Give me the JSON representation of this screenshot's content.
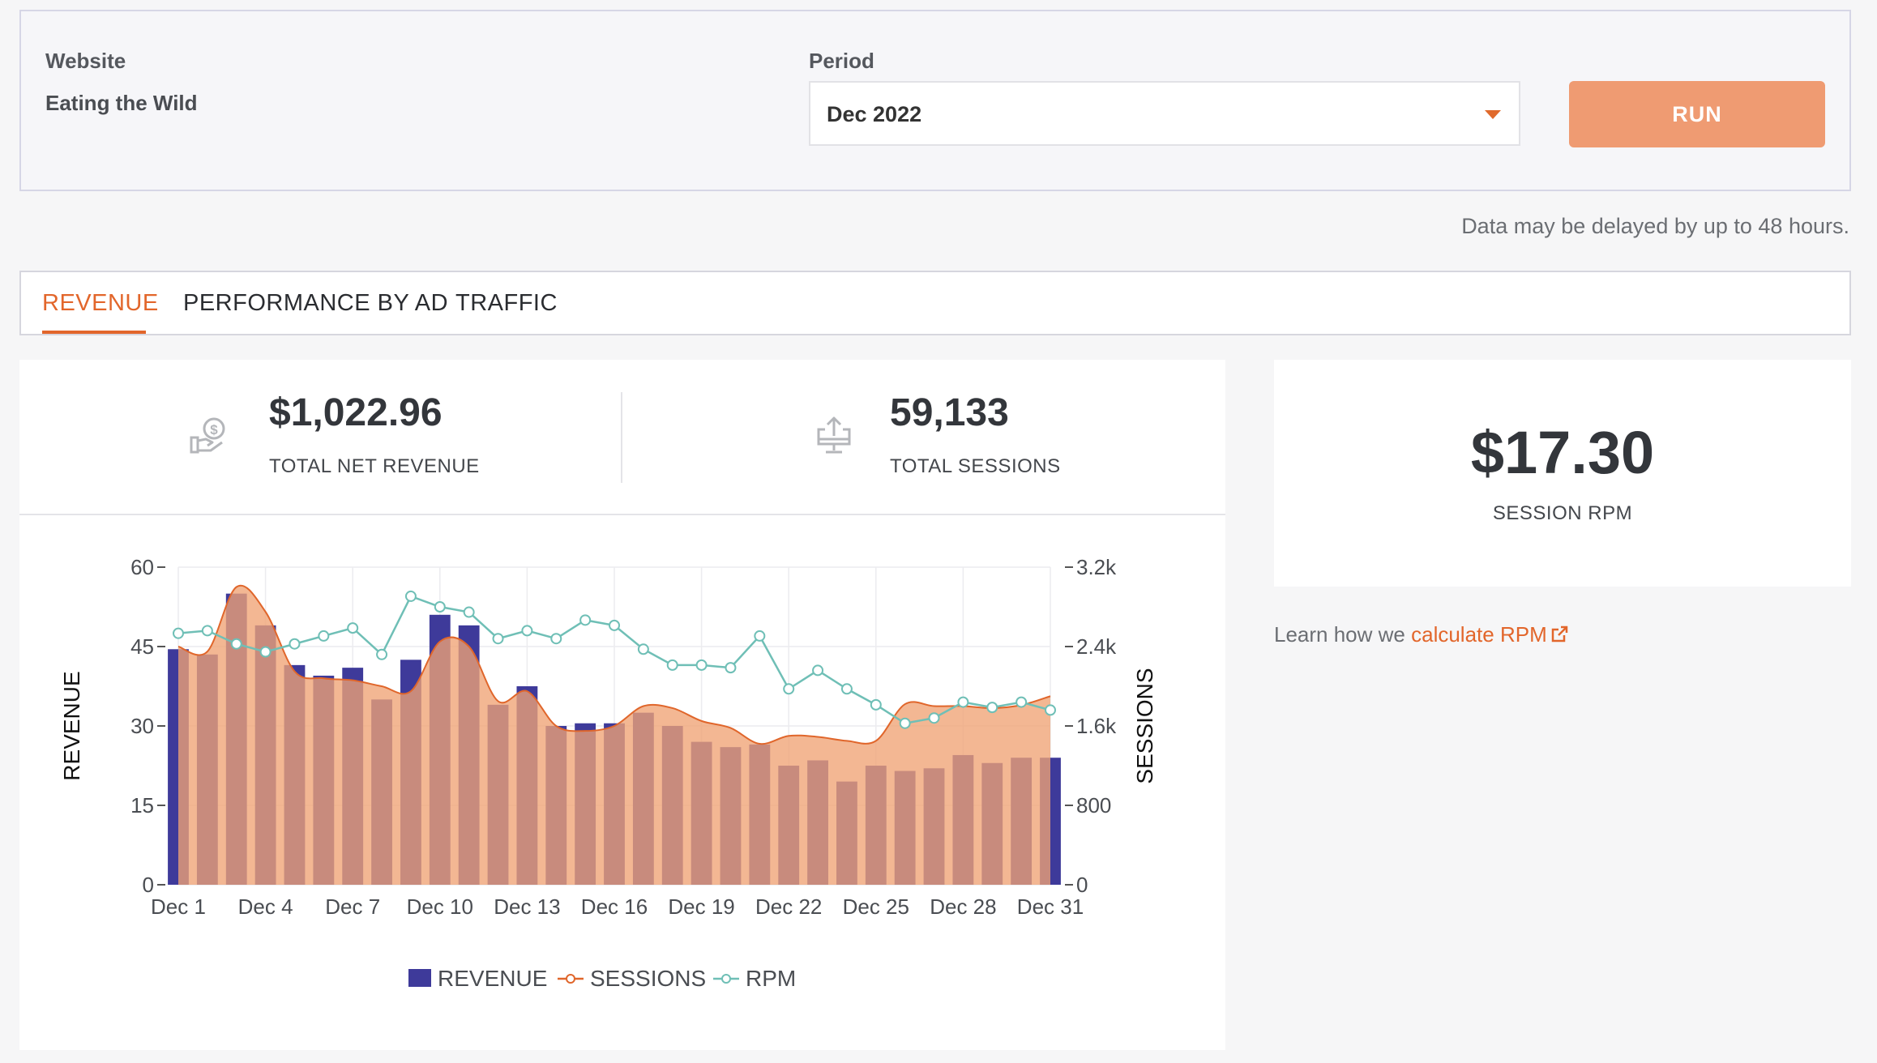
{
  "filters": {
    "website_label": "Website",
    "website_value": "Eating the Wild",
    "period_label": "Period",
    "period_value": "Dec 2022",
    "run_label": "RUN",
    "delay_note": "Data may be delayed by up to 48 hours."
  },
  "tabs": [
    {
      "label": "REVENUE",
      "active": true
    },
    {
      "label": "PERFORMANCE BY AD",
      "active": false
    },
    {
      "label": "TRAFFIC",
      "active": false
    }
  ],
  "stats": {
    "revenue_value": "$1,022.96",
    "revenue_label": "TOTAL NET REVENUE",
    "revenue_icon": "money-hand-icon",
    "sessions_value": "59,133",
    "sessions_label": "TOTAL SESSIONS",
    "sessions_icon": "monitor-upload-icon"
  },
  "rpm": {
    "value": "$17.30",
    "label": "SESSION RPM",
    "learn_prefix": "Learn how we ",
    "learn_link": "calculate RPM",
    "link_icon": "external-link-icon"
  },
  "colors": {
    "accent": "#e2662b",
    "revenue_bar": "#3e3a9a",
    "sessions_fill": "#f0a375",
    "sessions_line": "#e0662b",
    "rpm_line": "#6fbfb6"
  },
  "chart_data": {
    "type": "bar",
    "x": [
      "Dec 1",
      "Dec 2",
      "Dec 3",
      "Dec 4",
      "Dec 5",
      "Dec 6",
      "Dec 7",
      "Dec 8",
      "Dec 9",
      "Dec 10",
      "Dec 11",
      "Dec 12",
      "Dec 13",
      "Dec 14",
      "Dec 15",
      "Dec 16",
      "Dec 17",
      "Dec 18",
      "Dec 19",
      "Dec 20",
      "Dec 21",
      "Dec 22",
      "Dec 23",
      "Dec 24",
      "Dec 25",
      "Dec 26",
      "Dec 27",
      "Dec 28",
      "Dec 29",
      "Dec 30",
      "Dec 31"
    ],
    "x_ticks": [
      "Dec 1",
      "Dec 4",
      "Dec 7",
      "Dec 10",
      "Dec 13",
      "Dec 16",
      "Dec 19",
      "Dec 22",
      "Dec 25",
      "Dec 28",
      "Dec 31"
    ],
    "ylabel": "REVENUE",
    "y2label": "SESSIONS",
    "ylim": [
      0,
      60
    ],
    "y2lim": [
      0,
      3200
    ],
    "y_ticks": [
      "0",
      "15",
      "30",
      "45",
      "60"
    ],
    "y2_ticks": [
      "0",
      "800",
      "1.6k",
      "2.4k",
      "3.2k"
    ],
    "series": [
      {
        "name": "REVENUE",
        "type": "bar",
        "axis": "left",
        "values": [
          44.5,
          43.5,
          55,
          49,
          41.5,
          39.5,
          41,
          35,
          42.5,
          51,
          49,
          34,
          37.5,
          30,
          30.5,
          30.5,
          32.5,
          30,
          27,
          26,
          26.5,
          22.5,
          23.5,
          19.5,
          22.5,
          21.5,
          22,
          24.5,
          23,
          24,
          24
        ]
      },
      {
        "name": "SESSIONS",
        "type": "area",
        "axis": "right",
        "values": [
          2400,
          2350,
          3000,
          2750,
          2150,
          2080,
          2060,
          2000,
          1950,
          2450,
          2400,
          1850,
          1950,
          1600,
          1550,
          1600,
          1800,
          1780,
          1650,
          1580,
          1420,
          1500,
          1490,
          1450,
          1450,
          1820,
          1800,
          1800,
          1780,
          1810,
          1900
        ]
      },
      {
        "name": "RPM",
        "type": "line",
        "axis": "left",
        "values": [
          47.5,
          48,
          45.5,
          44,
          45.5,
          47,
          48.5,
          43.5,
          54.5,
          52.5,
          51.5,
          46.5,
          48,
          46.5,
          50,
          49,
          44.5,
          41.5,
          41.5,
          41,
          47,
          37,
          40.5,
          37,
          34,
          30.5,
          31.5,
          34.5,
          33.5,
          34.5,
          33
        ]
      }
    ],
    "grid": true,
    "legend": "bottom-center"
  }
}
